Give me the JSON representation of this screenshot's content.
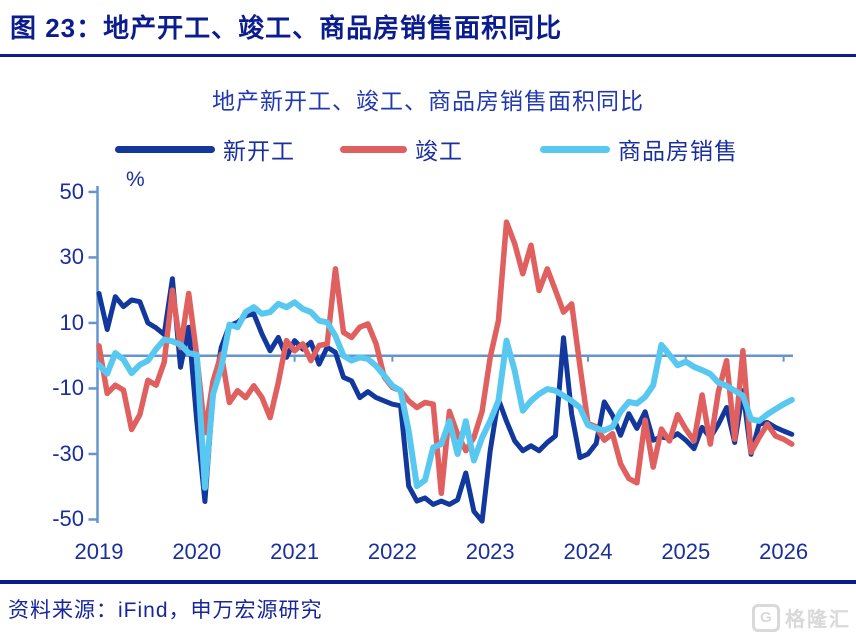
{
  "header": {
    "title": "图 23：地产开工、竣工、商品房销售面积同比"
  },
  "source": {
    "text": "资料来源：iFind，申万宏源研究"
  },
  "watermark": {
    "logo_letter": "G",
    "text": "格隆汇"
  },
  "colors": {
    "header_navy": "#0a1c8e",
    "chart_title_blue": "#2238b0",
    "axis_text": "#1a2f9e",
    "axis_line": "#6495cf",
    "watermark_gray": "#d9d9d9"
  },
  "chart_data": {
    "type": "line",
    "title": "地产新开工、竣工、商品房销售面积同比",
    "unit": "%",
    "grid": false,
    "legend_position": "top",
    "x_frequency": "monthly",
    "x_from": "2019-01",
    "x_to": "2026-02",
    "x_tick_labels": [
      "2019",
      "2020",
      "2021",
      "2022",
      "2023",
      "2024",
      "2025",
      "2026"
    ],
    "y_ticks": [
      50,
      30,
      10,
      -10,
      -30,
      -50
    ],
    "ylim": [
      -50,
      50
    ],
    "zero_line": true,
    "series": [
      {
        "name": "新开工",
        "color": "#12389d",
        "values": [
          19,
          8,
          18,
          15,
          17,
          16.5,
          10,
          8.5,
          6.5,
          23.5,
          -3.5,
          8.7,
          -20,
          -44.5,
          -11.7,
          2.6,
          9.2,
          10.2,
          12.2,
          12.8,
          6.6,
          1.5,
          5.6,
          -0.5,
          4.6,
          2,
          4.1,
          -2.6,
          2.6,
          1,
          -6.6,
          -7.7,
          -12.8,
          -11,
          -12.8,
          -13.8,
          -14.8,
          -15.3,
          -39.8,
          -44.4,
          -43.4,
          -45.4,
          -44.4,
          -45.4,
          -44,
          -35.8,
          -47.5,
          -50.5,
          -29,
          -13.3,
          -20,
          -26,
          -29,
          -27.5,
          -29,
          -26.5,
          -24.5,
          5.5,
          -17.9,
          -31.1,
          -30,
          -26.8,
          -14.1,
          -18.2,
          -24.3,
          -17.7,
          -22.2,
          -17.1,
          -25.8,
          -24.8,
          -25.3,
          -23.8,
          -25.8,
          -28.4,
          -21.9,
          -25,
          -20.9,
          -15.8,
          -26.5,
          -10.7,
          -30.1,
          -20.9,
          -20.4,
          -21.9,
          -23,
          -24
        ]
      },
      {
        "name": "竣工",
        "color": "#e06060",
        "values": [
          3,
          -11.5,
          -9,
          -10.5,
          -22.5,
          -18,
          -7.5,
          -9,
          -2,
          20,
          2.5,
          19,
          0,
          -23.5,
          -7.7,
          0.5,
          -14.3,
          -10.7,
          -12.8,
          -9.2,
          -12.8,
          -18.9,
          -8.2,
          4.6,
          1.5,
          3.6,
          -1.5,
          3.1,
          3.6,
          26.5,
          7.1,
          5.6,
          8.7,
          9.7,
          3.6,
          -6.6,
          -9.7,
          -10.7,
          -13.8,
          -15.8,
          -14.3,
          -14.8,
          -42,
          -17,
          -24,
          -29,
          -25,
          -17,
          -0.5,
          10.7,
          40.8,
          34.2,
          25,
          33.7,
          19.9,
          26.5,
          20,
          13.3,
          15.8,
          -3.1,
          -20.7,
          -21.7,
          -25.8,
          -23.8,
          -33,
          -37.5,
          -38.8,
          -19.7,
          -34,
          -22.4,
          -26,
          -18,
          -22.4,
          -26,
          -12,
          -27,
          -11,
          -1.5,
          -25.5,
          1.5,
          -29.5,
          -25,
          -20.9,
          -24.5,
          -25.5,
          -27
        ]
      },
      {
        "name": "商品房销售",
        "color": "#58c8f0",
        "values": [
          -2.8,
          -5.5,
          0.8,
          -1.2,
          -5.3,
          -2.8,
          -1.5,
          2,
          4.9,
          4.4,
          3.4,
          0.8,
          0.3,
          -40.3,
          -11.7,
          -3.6,
          9.5,
          8.7,
          13.3,
          14.8,
          12.8,
          13.3,
          15.8,
          14.8,
          16.3,
          14.3,
          13.3,
          10.7,
          10.2,
          6,
          0,
          -1.5,
          -0.5,
          -1,
          -3.1,
          -6.1,
          -9.2,
          -10.7,
          -23,
          -39.8,
          -38,
          -28,
          -27,
          -20,
          -30,
          -20,
          -32,
          -25,
          -19.9,
          -13.8,
          4.6,
          -4.6,
          -16.8,
          -13.8,
          -11.7,
          -10.2,
          -10.7,
          -12.2,
          -13.8,
          -15.8,
          -21.2,
          -22.2,
          -22.8,
          -21.7,
          -17.1,
          -14.1,
          -14.6,
          -12.6,
          -9,
          3.3,
          0.2,
          -2.9,
          -1.8,
          -3.4,
          -4.4,
          -5.6,
          -8.2,
          -9.2,
          -10.7,
          -12.2,
          -19.4,
          -19.9,
          -17.9,
          -16.3,
          -14.8,
          -13.5
        ]
      }
    ]
  }
}
